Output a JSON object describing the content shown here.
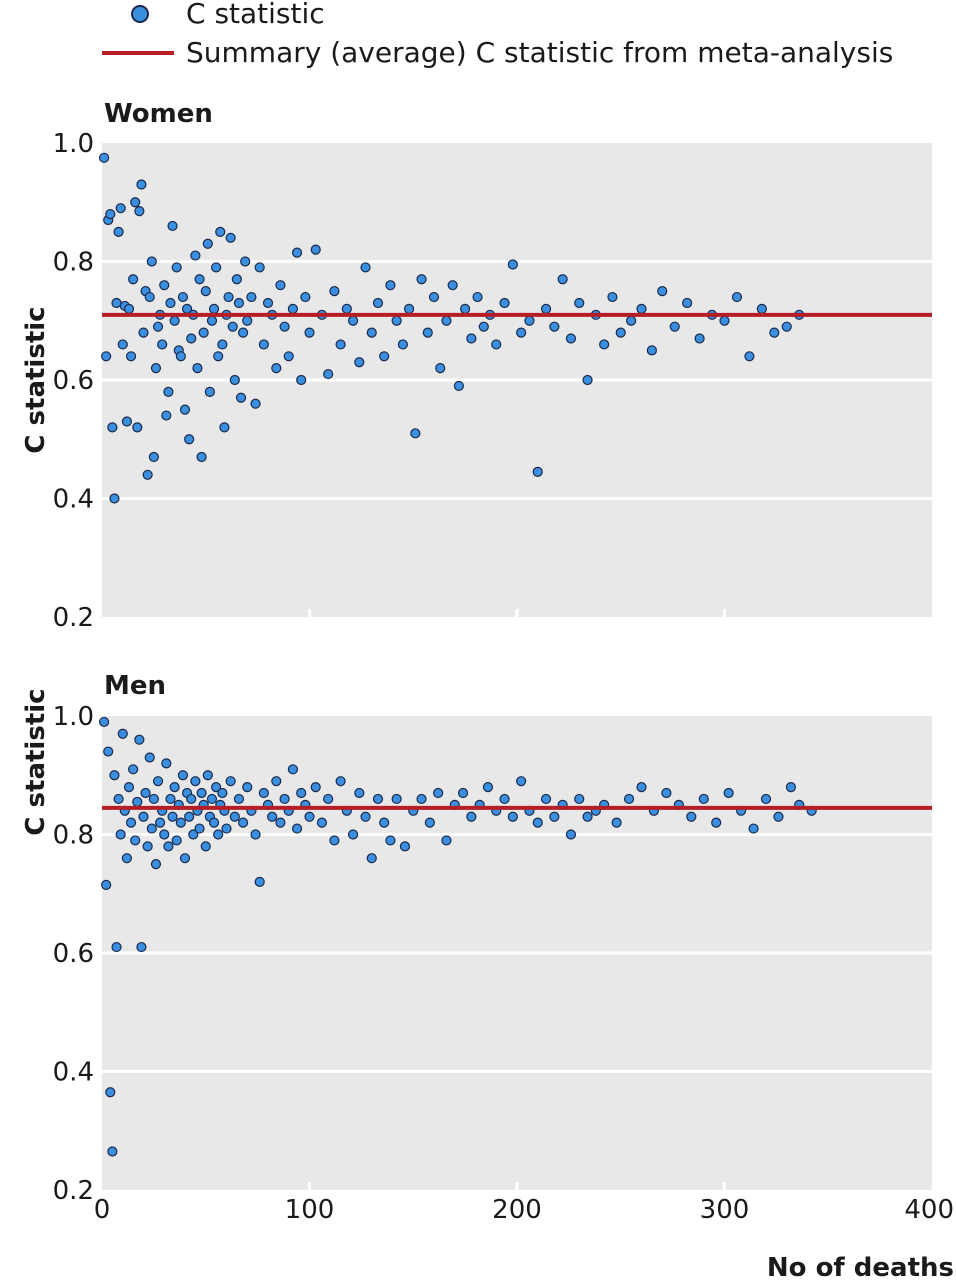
{
  "legend": {
    "marker_label": "C statistic",
    "line_label": "Summary (average) C statistic from meta-analysis"
  },
  "colors": {
    "panel_bg": "#e8e8e8",
    "gridline": "#ffffff",
    "point_fill": "#3b8fe0",
    "point_stroke": "#1b2a4a",
    "summary_line": "#b41e24"
  },
  "chart_data": [
    {
      "type": "scatter",
      "title": "Women",
      "xlabel": "",
      "ylabel": "C statistic",
      "xlim": [
        0,
        400
      ],
      "ylim": [
        0.2,
        1.0
      ],
      "xticks": [],
      "yticks": [
        "0.2",
        "0.4",
        "0.6",
        "0.8",
        "1.0"
      ],
      "grid": true,
      "summary_value": 0.71,
      "points": [
        [
          1,
          0.975
        ],
        [
          2,
          0.64
        ],
        [
          3,
          0.87
        ],
        [
          4,
          0.88
        ],
        [
          5,
          0.52
        ],
        [
          6,
          0.4
        ],
        [
          7,
          0.73
        ],
        [
          8,
          0.85
        ],
        [
          9,
          0.89
        ],
        [
          10,
          0.66
        ],
        [
          11,
          0.725
        ],
        [
          12,
          0.53
        ],
        [
          13,
          0.72
        ],
        [
          14,
          0.64
        ],
        [
          15,
          0.77
        ],
        [
          16,
          0.9
        ],
        [
          17,
          0.52
        ],
        [
          18,
          0.885
        ],
        [
          19,
          0.93
        ],
        [
          20,
          0.68
        ],
        [
          21,
          0.75
        ],
        [
          22,
          0.44
        ],
        [
          23,
          0.74
        ],
        [
          24,
          0.8
        ],
        [
          25,
          0.47
        ],
        [
          26,
          0.62
        ],
        [
          27,
          0.69
        ],
        [
          28,
          0.71
        ],
        [
          29,
          0.66
        ],
        [
          30,
          0.76
        ],
        [
          31,
          0.54
        ],
        [
          32,
          0.58
        ],
        [
          33,
          0.73
        ],
        [
          34,
          0.86
        ],
        [
          35,
          0.7
        ],
        [
          36,
          0.79
        ],
        [
          37,
          0.65
        ],
        [
          38,
          0.64
        ],
        [
          39,
          0.74
        ],
        [
          40,
          0.55
        ],
        [
          41,
          0.72
        ],
        [
          42,
          0.5
        ],
        [
          43,
          0.67
        ],
        [
          44,
          0.71
        ],
        [
          45,
          0.81
        ],
        [
          46,
          0.62
        ],
        [
          47,
          0.77
        ],
        [
          48,
          0.47
        ],
        [
          49,
          0.68
        ],
        [
          50,
          0.75
        ],
        [
          51,
          0.83
        ],
        [
          52,
          0.58
        ],
        [
          53,
          0.7
        ],
        [
          54,
          0.72
        ],
        [
          55,
          0.79
        ],
        [
          56,
          0.64
        ],
        [
          57,
          0.85
        ],
        [
          58,
          0.66
        ],
        [
          59,
          0.52
        ],
        [
          60,
          0.71
        ],
        [
          61,
          0.74
        ],
        [
          62,
          0.84
        ],
        [
          63,
          0.69
        ],
        [
          64,
          0.6
        ],
        [
          65,
          0.77
        ],
        [
          66,
          0.73
        ],
        [
          67,
          0.57
        ],
        [
          68,
          0.68
        ],
        [
          69,
          0.8
        ],
        [
          70,
          0.7
        ],
        [
          72,
          0.74
        ],
        [
          74,
          0.56
        ],
        [
          76,
          0.79
        ],
        [
          78,
          0.66
        ],
        [
          80,
          0.73
        ],
        [
          82,
          0.71
        ],
        [
          84,
          0.62
        ],
        [
          86,
          0.76
        ],
        [
          88,
          0.69
        ],
        [
          90,
          0.64
        ],
        [
          92,
          0.72
        ],
        [
          94,
          0.815
        ],
        [
          96,
          0.6
        ],
        [
          98,
          0.74
        ],
        [
          100,
          0.68
        ],
        [
          103,
          0.82
        ],
        [
          106,
          0.71
        ],
        [
          109,
          0.61
        ],
        [
          112,
          0.75
        ],
        [
          115,
          0.66
        ],
        [
          118,
          0.72
        ],
        [
          121,
          0.7
        ],
        [
          124,
          0.63
        ],
        [
          127,
          0.79
        ],
        [
          130,
          0.68
        ],
        [
          133,
          0.73
        ],
        [
          136,
          0.64
        ],
        [
          139,
          0.76
        ],
        [
          142,
          0.7
        ],
        [
          145,
          0.66
        ],
        [
          148,
          0.72
        ],
        [
          151,
          0.51
        ],
        [
          154,
          0.77
        ],
        [
          157,
          0.68
        ],
        [
          160,
          0.74
        ],
        [
          163,
          0.62
        ],
        [
          166,
          0.7
        ],
        [
          169,
          0.76
        ],
        [
          172,
          0.59
        ],
        [
          175,
          0.72
        ],
        [
          178,
          0.67
        ],
        [
          181,
          0.74
        ],
        [
          184,
          0.69
        ],
        [
          187,
          0.71
        ],
        [
          190,
          0.66
        ],
        [
          194,
          0.73
        ],
        [
          198,
          0.795
        ],
        [
          202,
          0.68
        ],
        [
          206,
          0.7
        ],
        [
          210,
          0.445
        ],
        [
          214,
          0.72
        ],
        [
          218,
          0.69
        ],
        [
          222,
          0.77
        ],
        [
          226,
          0.67
        ],
        [
          230,
          0.73
        ],
        [
          234,
          0.6
        ],
        [
          238,
          0.71
        ],
        [
          242,
          0.66
        ],
        [
          246,
          0.74
        ],
        [
          250,
          0.68
        ],
        [
          255,
          0.7
        ],
        [
          260,
          0.72
        ],
        [
          265,
          0.65
        ],
        [
          270,
          0.75
        ],
        [
          276,
          0.69
        ],
        [
          282,
          0.73
        ],
        [
          288,
          0.67
        ],
        [
          294,
          0.71
        ],
        [
          300,
          0.7
        ],
        [
          306,
          0.74
        ],
        [
          312,
          0.64
        ],
        [
          318,
          0.72
        ],
        [
          324,
          0.68
        ],
        [
          330,
          0.69
        ],
        [
          336,
          0.71
        ]
      ]
    },
    {
      "type": "scatter",
      "title": "Men",
      "xlabel": "No of deaths",
      "ylabel": "C statistic",
      "xlim": [
        0,
        400
      ],
      "ylim": [
        0.2,
        1.0
      ],
      "xticks": [
        "0",
        "100",
        "200",
        "300",
        "400"
      ],
      "yticks": [
        "0.2",
        "0.4",
        "0.6",
        "0.8",
        "1.0"
      ],
      "grid": true,
      "summary_value": 0.845,
      "points": [
        [
          1,
          0.99
        ],
        [
          2,
          0.715
        ],
        [
          3,
          0.94
        ],
        [
          4,
          0.365
        ],
        [
          5,
          0.265
        ],
        [
          6,
          0.9
        ],
        [
          7,
          0.61
        ],
        [
          8,
          0.86
        ],
        [
          9,
          0.8
        ],
        [
          10,
          0.97
        ],
        [
          11,
          0.84
        ],
        [
          12,
          0.76
        ],
        [
          13,
          0.88
        ],
        [
          14,
          0.82
        ],
        [
          15,
          0.91
        ],
        [
          16,
          0.79
        ],
        [
          17,
          0.855
        ],
        [
          18,
          0.96
        ],
        [
          19,
          0.61
        ],
        [
          20,
          0.83
        ],
        [
          21,
          0.87
        ],
        [
          22,
          0.78
        ],
        [
          23,
          0.93
        ],
        [
          24,
          0.81
        ],
        [
          25,
          0.86
        ],
        [
          26,
          0.75
        ],
        [
          27,
          0.89
        ],
        [
          28,
          0.82
        ],
        [
          29,
          0.84
        ],
        [
          30,
          0.8
        ],
        [
          31,
          0.92
        ],
        [
          32,
          0.78
        ],
        [
          33,
          0.86
        ],
        [
          34,
          0.83
        ],
        [
          35,
          0.88
        ],
        [
          36,
          0.79
        ],
        [
          37,
          0.85
        ],
        [
          38,
          0.82
        ],
        [
          39,
          0.9
        ],
        [
          40,
          0.76
        ],
        [
          41,
          0.87
        ],
        [
          42,
          0.83
        ],
        [
          43,
          0.86
        ],
        [
          44,
          0.8
        ],
        [
          45,
          0.89
        ],
        [
          46,
          0.84
        ],
        [
          47,
          0.81
        ],
        [
          48,
          0.87
        ],
        [
          49,
          0.85
        ],
        [
          50,
          0.78
        ],
        [
          51,
          0.9
        ],
        [
          52,
          0.83
        ],
        [
          53,
          0.86
        ],
        [
          54,
          0.82
        ],
        [
          55,
          0.88
        ],
        [
          56,
          0.8
        ],
        [
          57,
          0.85
        ],
        [
          58,
          0.87
        ],
        [
          59,
          0.84
        ],
        [
          60,
          0.81
        ],
        [
          62,
          0.89
        ],
        [
          64,
          0.83
        ],
        [
          66,
          0.86
        ],
        [
          68,
          0.82
        ],
        [
          70,
          0.88
        ],
        [
          72,
          0.84
        ],
        [
          74,
          0.8
        ],
        [
          76,
          0.72
        ],
        [
          78,
          0.87
        ],
        [
          80,
          0.85
        ],
        [
          82,
          0.83
        ],
        [
          84,
          0.89
        ],
        [
          86,
          0.82
        ],
        [
          88,
          0.86
        ],
        [
          90,
          0.84
        ],
        [
          92,
          0.91
        ],
        [
          94,
          0.81
        ],
        [
          96,
          0.87
        ],
        [
          98,
          0.85
        ],
        [
          100,
          0.83
        ],
        [
          103,
          0.88
        ],
        [
          106,
          0.82
        ],
        [
          109,
          0.86
        ],
        [
          112,
          0.79
        ],
        [
          115,
          0.89
        ],
        [
          118,
          0.84
        ],
        [
          121,
          0.8
        ],
        [
          124,
          0.87
        ],
        [
          127,
          0.83
        ],
        [
          130,
          0.76
        ],
        [
          133,
          0.86
        ],
        [
          136,
          0.82
        ],
        [
          139,
          0.79
        ],
        [
          142,
          0.86
        ],
        [
          146,
          0.78
        ],
        [
          150,
          0.84
        ],
        [
          154,
          0.86
        ],
        [
          158,
          0.82
        ],
        [
          162,
          0.87
        ],
        [
          166,
          0.79
        ],
        [
          170,
          0.85
        ],
        [
          174,
          0.87
        ],
        [
          178,
          0.83
        ],
        [
          182,
          0.85
        ],
        [
          186,
          0.88
        ],
        [
          190,
          0.84
        ],
        [
          194,
          0.86
        ],
        [
          198,
          0.83
        ],
        [
          202,
          0.89
        ],
        [
          206,
          0.84
        ],
        [
          210,
          0.82
        ],
        [
          214,
          0.86
        ],
        [
          218,
          0.83
        ],
        [
          222,
          0.85
        ],
        [
          226,
          0.8
        ],
        [
          230,
          0.86
        ],
        [
          234,
          0.83
        ],
        [
          238,
          0.84
        ],
        [
          242,
          0.85
        ],
        [
          248,
          0.82
        ],
        [
          254,
          0.86
        ],
        [
          260,
          0.88
        ],
        [
          266,
          0.84
        ],
        [
          272,
          0.87
        ],
        [
          278,
          0.85
        ],
        [
          284,
          0.83
        ],
        [
          290,
          0.86
        ],
        [
          296,
          0.82
        ],
        [
          302,
          0.87
        ],
        [
          308,
          0.84
        ],
        [
          314,
          0.81
        ],
        [
          320,
          0.86
        ],
        [
          326,
          0.83
        ],
        [
          332,
          0.88
        ],
        [
          336,
          0.85
        ],
        [
          342,
          0.84
        ]
      ]
    }
  ]
}
